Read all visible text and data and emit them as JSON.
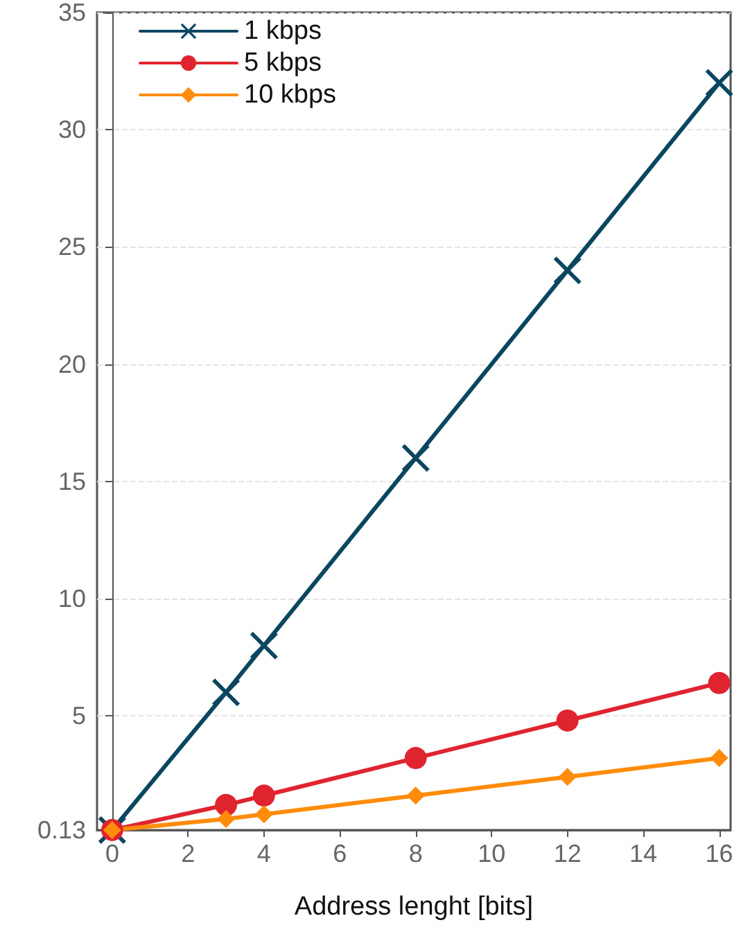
{
  "chart_data": {
    "type": "line",
    "xlabel": "Address lenght [bits]",
    "x": [
      0,
      3,
      4,
      8,
      12,
      16
    ],
    "series": [
      {
        "name": "1 kbps",
        "color": "#0b4661",
        "marker": "cross",
        "values": [
          0.13,
          6,
          8,
          16,
          24,
          32
        ]
      },
      {
        "name": "5 kbps",
        "color": "#e0242f",
        "marker": "circle",
        "values": [
          0.13,
          1.2,
          1.6,
          3.2,
          4.8,
          6.4
        ]
      },
      {
        "name": "10 kbps",
        "color": "#ff8c0a",
        "marker": "diamond",
        "values": [
          0.13,
          0.6,
          0.8,
          1.6,
          2.4,
          3.2
        ]
      }
    ],
    "xlim": [
      -0.4,
      16.3
    ],
    "xticks": [
      0,
      2,
      4,
      6,
      8,
      10,
      12,
      14,
      16
    ],
    "ylim": [
      0.13,
      35
    ],
    "yticks": [
      0.13,
      5,
      10,
      15,
      20,
      25,
      30,
      35
    ],
    "grid": "y",
    "legend": "top left",
    "line_style": "solid"
  }
}
